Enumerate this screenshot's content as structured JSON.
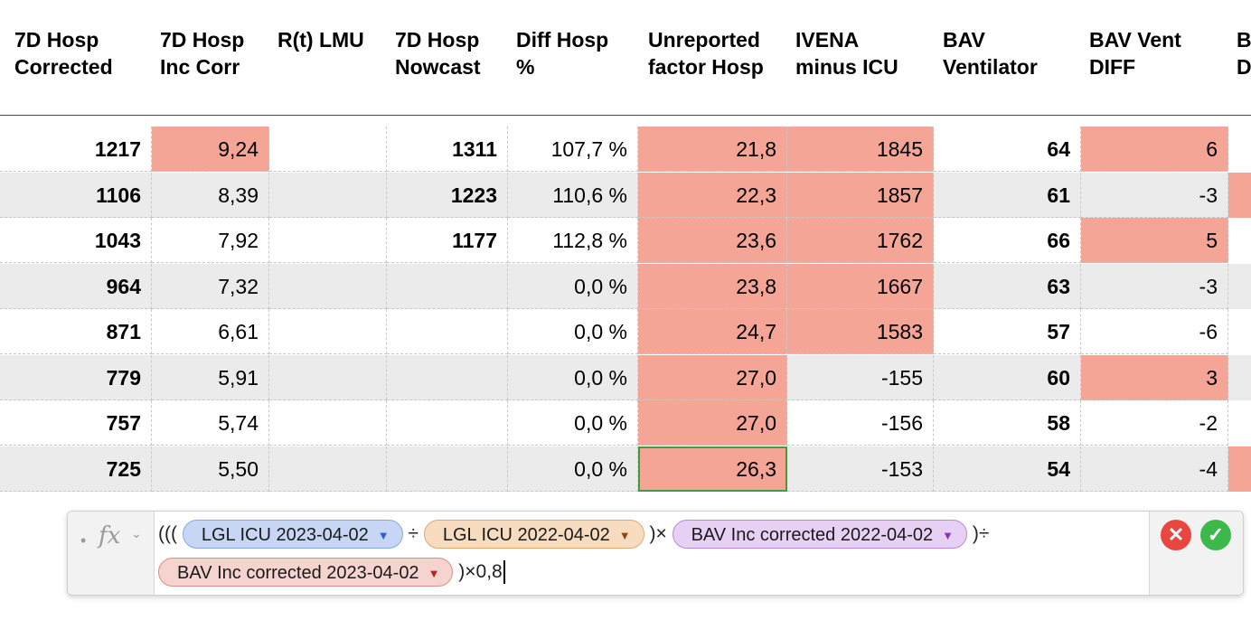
{
  "columns": [
    {
      "line1": "7D Hosp",
      "line2": "Corrected"
    },
    {
      "line1": "7D Hosp",
      "line2": "Inc Corr"
    },
    {
      "line1": "R(t) LMU",
      "line2": ""
    },
    {
      "line1": "7D Hosp",
      "line2": "Nowcast"
    },
    {
      "line1": "Diff Hosp",
      "line2": "%"
    },
    {
      "line1": "Unreported",
      "line2": "factor Hosp"
    },
    {
      "line1": "IVENA",
      "line2": "minus ICU"
    },
    {
      "line1": "BAV",
      "line2": "Ventilator"
    },
    {
      "line1": "BAV Vent",
      "line2": "DIFF"
    },
    {
      "line1": "B",
      "line2": "D"
    }
  ],
  "rows": [
    [
      "1217",
      "9,24",
      "",
      "1311",
      "107,7 %",
      "21,8",
      "1845",
      "64",
      "6"
    ],
    [
      "1106",
      "8,39",
      "",
      "1223",
      "110,6 %",
      "22,3",
      "1857",
      "61",
      "-3"
    ],
    [
      "1043",
      "7,92",
      "",
      "1177",
      "112,8 %",
      "23,6",
      "1762",
      "66",
      "5"
    ],
    [
      "964",
      "7,32",
      "",
      "",
      "0,0 %",
      "23,8",
      "1667",
      "63",
      "-3"
    ],
    [
      "871",
      "6,61",
      "",
      "",
      "0,0 %",
      "24,7",
      "1583",
      "57",
      "-6"
    ],
    [
      "779",
      "5,91",
      "",
      "",
      "0,0 %",
      "27,0",
      "-155",
      "60",
      "3"
    ],
    [
      "757",
      "5,74",
      "",
      "",
      "0,0 %",
      "27,0",
      "-156",
      "58",
      "-2"
    ],
    [
      "725",
      "5,50",
      "",
      "",
      "0,0 %",
      "26,3",
      "-153",
      "54",
      "-4"
    ]
  ],
  "highlight": {
    "color": "#f4a596",
    "inc_corr_rows": [
      0
    ],
    "ivena_rows": [
      0,
      1,
      2,
      3,
      4
    ],
    "bav_diff_rows": [
      0,
      2,
      5
    ],
    "tail_rows": [
      1,
      7
    ]
  },
  "selection": {
    "row": 7,
    "column": "Unreported factor Hosp",
    "outline_color": "#3f9c43"
  },
  "formula": {
    "fx_label": "fx",
    "tokens": {
      "t1": "LGL ICU 2023-04-02",
      "t2": "LGL ICU 2022-04-02",
      "t3": "BAV Inc corrected 2022-04-02",
      "t4": "BAV Inc corrected 2023-04-02"
    },
    "ops": {
      "open": "(((",
      "div": "÷",
      "mul_close": ")×",
      "div_close": ")÷",
      "tail": ")×0,8"
    },
    "cancel_icon": "close-icon",
    "accept_icon": "checkmark-icon"
  }
}
